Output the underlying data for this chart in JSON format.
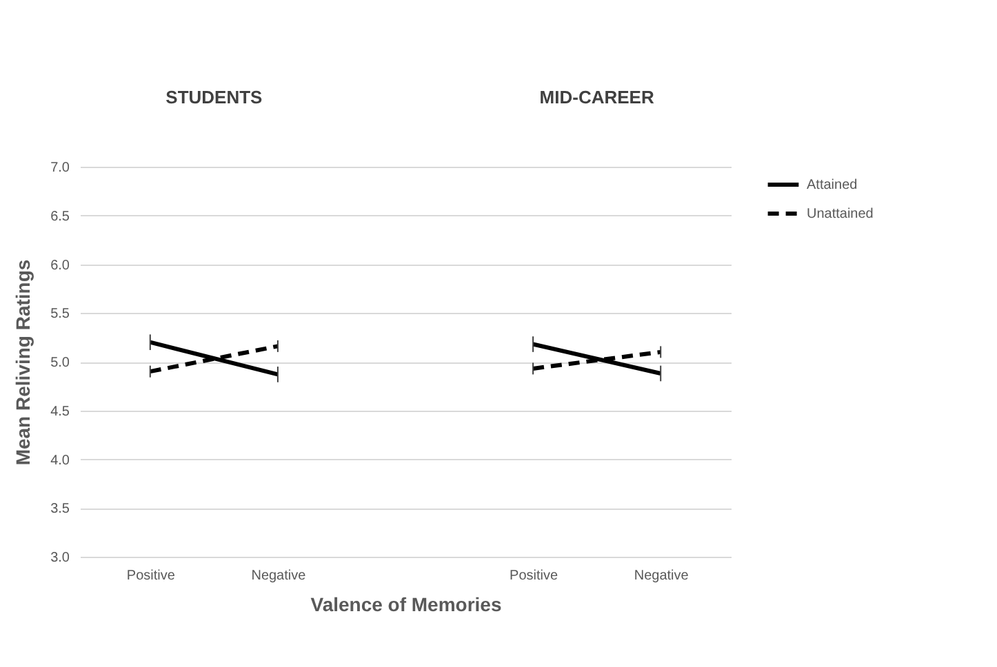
{
  "chart_data": {
    "type": "line",
    "xlabel": "Valence of Memories",
    "ylabel": "Mean Reliving Ratings",
    "annotations": [
      "STUDENTS",
      "MID-CAREER"
    ],
    "categories": [
      "Positive",
      "Negative",
      null,
      "Positive",
      "Negative"
    ],
    "series": [
      {
        "name": "Attained",
        "color": "#000000",
        "line_style": "solid",
        "values": [
          5.2,
          4.87,
          null,
          5.18,
          4.88
        ],
        "errors": [
          0.08,
          0.08,
          null,
          0.08,
          0.08
        ]
      },
      {
        "name": "Unattained",
        "color": "#000000",
        "line_style": "dashed",
        "values": [
          4.9,
          5.16,
          null,
          4.93,
          5.1
        ],
        "errors": [
          0.06,
          0.06,
          null,
          0.06,
          0.06
        ]
      }
    ],
    "ylim": [
      3,
      7
    ],
    "yticks": [
      {
        "value": 3,
        "label": "3.0"
      },
      {
        "value": 3.5,
        "label": "3.5"
      },
      {
        "value": 4,
        "label": "4.0"
      },
      {
        "value": 4.5,
        "label": "4.5"
      },
      {
        "value": 5,
        "label": "5.0"
      },
      {
        "value": 5.5,
        "label": "5.5"
      },
      {
        "value": 6,
        "label": "6.0"
      },
      {
        "value": 6.5,
        "label": "6.5"
      },
      {
        "value": 7,
        "label": "7.0"
      }
    ],
    "grid": "y",
    "legend": "top right",
    "marker": "none"
  }
}
